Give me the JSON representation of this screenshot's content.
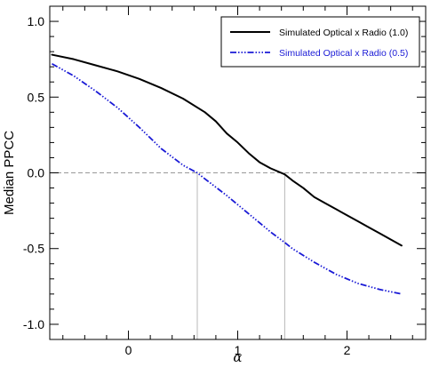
{
  "chart_data": {
    "type": "line",
    "title": "",
    "xlabel": "α",
    "ylabel": "Median PPCC",
    "xlim": [
      -0.72,
      2.72
    ],
    "ylim": [
      -1.1,
      1.1
    ],
    "x_ticks": [
      0,
      1,
      2
    ],
    "x_tick_labels": [
      "0",
      "1",
      "2"
    ],
    "y_ticks": [
      1.0,
      0.5,
      0.0,
      -0.5,
      -1.0
    ],
    "y_tick_labels": [
      "1.0",
      "0.5",
      "0.0",
      "-0.5",
      "-1.0"
    ],
    "grid": false,
    "legend_position": "top-right",
    "reference_line_y": 0.0,
    "vertical_markers": [
      0.63,
      1.43
    ],
    "series": [
      {
        "name": "Simulated Optical x Radio (1.0)",
        "color": "#000000",
        "style": "solid",
        "x": [
          -0.7,
          -0.5,
          -0.3,
          -0.1,
          0.1,
          0.3,
          0.5,
          0.7,
          0.8,
          0.9,
          1.0,
          1.1,
          1.2,
          1.3,
          1.43,
          1.5,
          1.6,
          1.7,
          1.8,
          1.9,
          2.0,
          2.1,
          2.2,
          2.3,
          2.4,
          2.5
        ],
        "y": [
          0.78,
          0.75,
          0.71,
          0.67,
          0.62,
          0.56,
          0.49,
          0.4,
          0.34,
          0.26,
          0.2,
          0.13,
          0.07,
          0.03,
          -0.01,
          -0.05,
          -0.1,
          -0.16,
          -0.2,
          -0.24,
          -0.28,
          -0.32,
          -0.36,
          -0.4,
          -0.44,
          -0.48
        ]
      },
      {
        "name": "Simulated Optical x Radio (0.5)",
        "color": "#1a1ad6",
        "style": "dash-dot",
        "x": [
          -0.7,
          -0.5,
          -0.3,
          -0.1,
          0.1,
          0.3,
          0.5,
          0.63,
          0.7,
          0.9,
          1.1,
          1.3,
          1.43,
          1.5,
          1.7,
          1.9,
          2.1,
          2.3,
          2.5
        ],
        "y": [
          0.72,
          0.64,
          0.54,
          0.43,
          0.3,
          0.16,
          0.05,
          0.0,
          -0.04,
          -0.15,
          -0.27,
          -0.39,
          -0.46,
          -0.5,
          -0.59,
          -0.67,
          -0.73,
          -0.77,
          -0.8
        ]
      }
    ]
  }
}
